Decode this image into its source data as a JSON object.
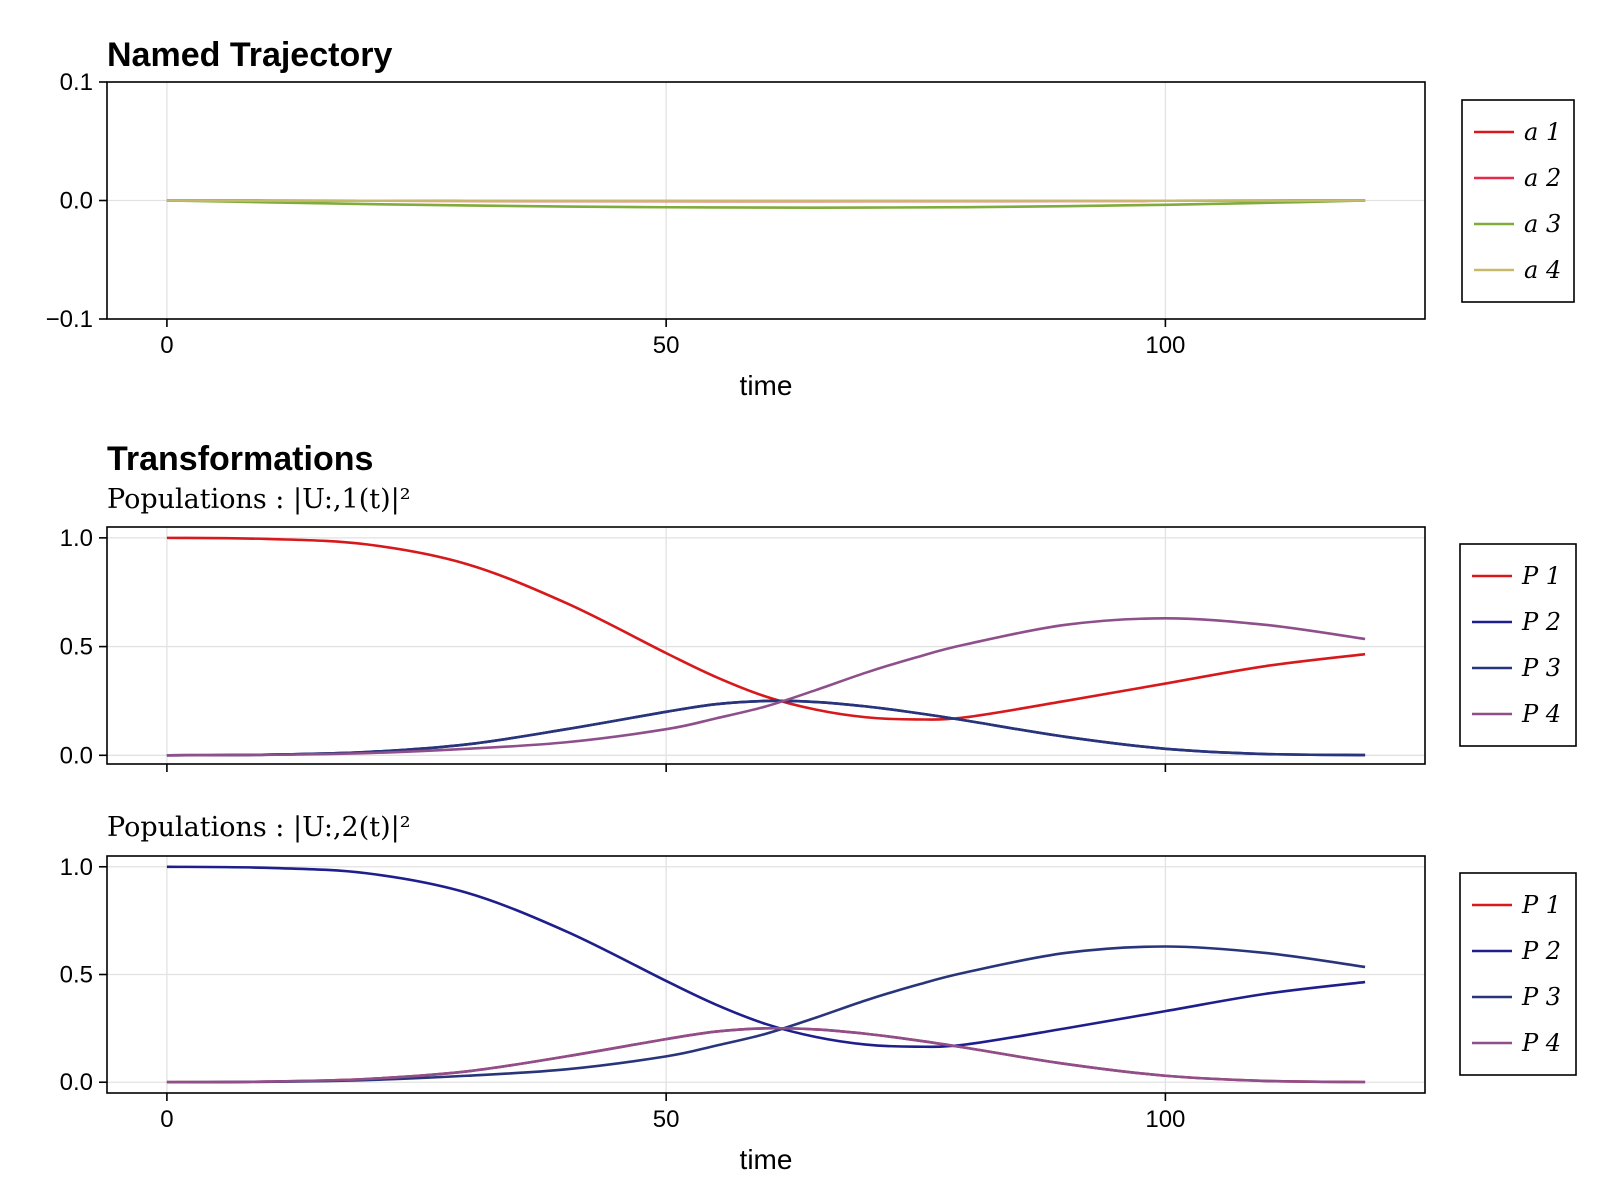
{
  "chart_data": [
    {
      "type": "line",
      "title": "Named Trajectory",
      "subtitle": "",
      "xlabel": "time",
      "ylabel": "",
      "xlim": [
        -6,
        126
      ],
      "ylim": [
        -0.1,
        0.1
      ],
      "xticks": [
        0,
        50,
        100
      ],
      "xtick_labels": [
        "0",
        "50",
        "100"
      ],
      "yticks": [
        -0.1,
        0.0,
        0.1
      ],
      "ytick_labels": [
        "−0.1",
        "0.0",
        "0.1"
      ],
      "show_xtick_labels": true,
      "grid": true,
      "legend": "right",
      "x": [
        0,
        10,
        20,
        30,
        40,
        50,
        60,
        70,
        80,
        90,
        100,
        110,
        120
      ],
      "series": [
        {
          "name": "a 1",
          "color": "#d7191c",
          "values": [
            0,
            -0.0001,
            -0.0002,
            -0.0003,
            -0.0004,
            -0.0004,
            -0.0005,
            -0.0004,
            -0.0004,
            -0.0003,
            -0.0002,
            -0.0001,
            0
          ]
        },
        {
          "name": "a 2",
          "color": "#e8284d",
          "values": [
            0,
            -0.0001,
            -0.0002,
            -0.0003,
            -0.0003,
            -0.0004,
            -0.0004,
            -0.0004,
            -0.0003,
            -0.0003,
            -0.0002,
            -0.0001,
            0
          ]
        },
        {
          "name": "a 3",
          "color": "#7fac3a",
          "values": [
            0,
            -0.0015,
            -0.003,
            -0.0042,
            -0.0051,
            -0.0057,
            -0.006,
            -0.006,
            -0.0056,
            -0.0048,
            -0.0036,
            -0.002,
            0
          ]
        },
        {
          "name": "a 4",
          "color": "#c7b96c",
          "values": [
            0,
            -0.0001,
            -0.0002,
            -0.0002,
            -0.0003,
            -0.0003,
            -0.0003,
            -0.0003,
            -0.0003,
            -0.0002,
            -0.0002,
            -0.0001,
            0
          ]
        }
      ]
    },
    {
      "type": "line",
      "title": "Transformations",
      "subtitle": "Populations : |U:,1(t)|²",
      "xlabel": "",
      "ylabel": "",
      "xlim": [
        -6,
        126
      ],
      "ylim": [
        -0.04,
        1.05
      ],
      "xticks": [
        0,
        50,
        100
      ],
      "xtick_labels": [
        "0",
        "50",
        "100"
      ],
      "yticks": [
        0.0,
        0.5,
        1.0
      ],
      "ytick_labels": [
        "0.0",
        "0.5",
        "1.0"
      ],
      "show_xtick_labels": false,
      "grid": true,
      "legend": "right",
      "x": [
        0,
        10,
        20,
        30,
        40,
        50,
        55,
        60,
        65,
        70,
        75,
        80,
        90,
        100,
        110,
        120
      ],
      "series": [
        {
          "name": "P 1",
          "color": "#d7191c",
          "values": [
            1.0,
            0.995,
            0.97,
            0.88,
            0.7,
            0.47,
            0.36,
            0.27,
            0.21,
            0.175,
            0.165,
            0.175,
            0.25,
            0.33,
            0.41,
            0.465
          ]
        },
        {
          "name": "P 2",
          "color": "#1e1e8c",
          "values": [
            0.0,
            0.003,
            0.015,
            0.05,
            0.12,
            0.2,
            0.235,
            0.25,
            0.245,
            0.225,
            0.195,
            0.16,
            0.085,
            0.03,
            0.006,
            0.001
          ]
        },
        {
          "name": "P 3",
          "color": "#28357a",
          "values": [
            0.0,
            0.003,
            0.015,
            0.05,
            0.12,
            0.2,
            0.235,
            0.25,
            0.245,
            0.225,
            0.195,
            0.16,
            0.085,
            0.03,
            0.006,
            0.001
          ]
        },
        {
          "name": "P 4",
          "color": "#8e4f8b",
          "values": [
            0.0,
            0.002,
            0.01,
            0.03,
            0.06,
            0.12,
            0.17,
            0.225,
            0.3,
            0.38,
            0.45,
            0.51,
            0.6,
            0.63,
            0.6,
            0.535
          ]
        }
      ]
    },
    {
      "type": "line",
      "title": "",
      "subtitle": "Populations : |U:,2(t)|²",
      "xlabel": "time",
      "ylabel": "",
      "xlim": [
        -6,
        126
      ],
      "ylim": [
        -0.05,
        1.05
      ],
      "xticks": [
        0,
        50,
        100
      ],
      "xtick_labels": [
        "0",
        "50",
        "100"
      ],
      "yticks": [
        0.0,
        0.5,
        1.0
      ],
      "ytick_labels": [
        "0.0",
        "0.5",
        "1.0"
      ],
      "show_xtick_labels": true,
      "grid": true,
      "legend": "right",
      "x": [
        0,
        10,
        20,
        30,
        40,
        50,
        55,
        60,
        65,
        70,
        75,
        80,
        90,
        100,
        110,
        120
      ],
      "series": [
        {
          "name": "P 1",
          "color": "#d7191c",
          "values": [
            0.0,
            0.003,
            0.015,
            0.05,
            0.12,
            0.2,
            0.235,
            0.25,
            0.245,
            0.225,
            0.195,
            0.16,
            0.085,
            0.03,
            0.006,
            0.001
          ]
        },
        {
          "name": "P 2",
          "color": "#1e1e8c",
          "values": [
            1.0,
            0.995,
            0.97,
            0.88,
            0.7,
            0.47,
            0.36,
            0.27,
            0.21,
            0.175,
            0.165,
            0.175,
            0.25,
            0.33,
            0.41,
            0.465
          ]
        },
        {
          "name": "P 3",
          "color": "#28357a",
          "values": [
            0.0,
            0.002,
            0.01,
            0.03,
            0.06,
            0.12,
            0.17,
            0.225,
            0.3,
            0.38,
            0.45,
            0.51,
            0.6,
            0.63,
            0.6,
            0.535
          ]
        },
        {
          "name": "P 4",
          "color": "#8e4f8b",
          "values": [
            0.0,
            0.003,
            0.015,
            0.05,
            0.12,
            0.2,
            0.235,
            0.25,
            0.245,
            0.225,
            0.195,
            0.16,
            0.085,
            0.03,
            0.006,
            0.001
          ]
        }
      ]
    }
  ]
}
